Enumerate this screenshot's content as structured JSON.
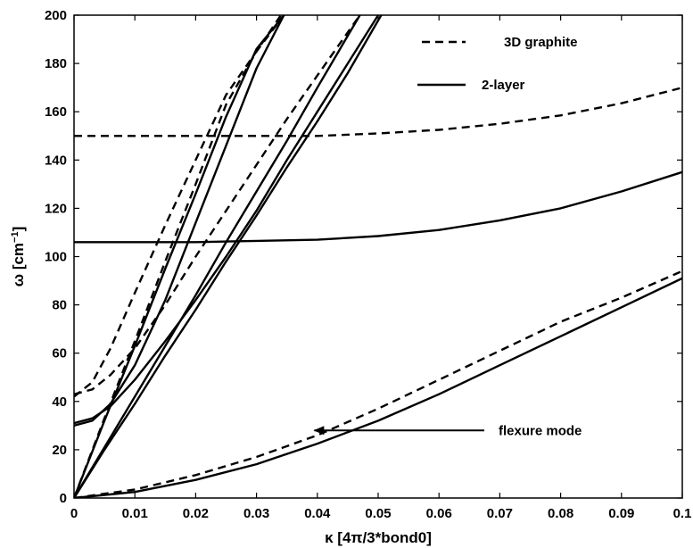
{
  "chart_data": {
    "type": "line",
    "xlabel": "κ [4π/3*bond0]",
    "ylabel_main": "ω [cm",
    "ylabel_sup": "−1",
    "ylabel_close": "]",
    "xlim": [
      0,
      0.1
    ],
    "ylim": [
      0,
      200
    ],
    "xticks": [
      0,
      0.01,
      0.02,
      0.03,
      0.04,
      0.05,
      0.06,
      0.07,
      0.08,
      0.09,
      0.1
    ],
    "xtick_labels": [
      "0",
      "0.01",
      "0.02",
      "0.03",
      "0.04",
      "0.05",
      "0.06",
      "0.07",
      "0.08",
      "0.09",
      "0.1"
    ],
    "yticks": [
      0,
      20,
      40,
      60,
      80,
      100,
      120,
      140,
      160,
      180,
      200
    ],
    "ytick_labels": [
      "0",
      "20",
      "40",
      "60",
      "80",
      "100",
      "120",
      "140",
      "160",
      "180",
      "200"
    ],
    "grid": false,
    "legend_position": "top-right",
    "legend": [
      {
        "label": "3D graphite",
        "style": "dashed"
      },
      {
        "label": "2-layer",
        "style": "solid"
      }
    ],
    "annotation": {
      "text": "flexure mode",
      "arrow_to": [
        0.0395,
        28
      ]
    },
    "series": [
      {
        "group": "3D graphite",
        "style": "dashed",
        "points": [
          [
            0,
            0
          ],
          [
            0.01,
            3.5
          ],
          [
            0.02,
            9.5
          ],
          [
            0.03,
            17
          ],
          [
            0.04,
            26
          ],
          [
            0.05,
            37
          ],
          [
            0.06,
            49
          ],
          [
            0.07,
            61
          ],
          [
            0.08,
            73
          ],
          [
            0.09,
            83
          ],
          [
            0.1,
            94
          ]
        ]
      },
      {
        "group": "3D graphite",
        "style": "dashed",
        "points": [
          [
            0,
            150
          ],
          [
            0.02,
            150
          ],
          [
            0.04,
            150
          ],
          [
            0.05,
            151
          ],
          [
            0.06,
            152.5
          ],
          [
            0.07,
            155
          ],
          [
            0.08,
            158.5
          ],
          [
            0.09,
            163.5
          ],
          [
            0.1,
            170
          ]
        ]
      },
      {
        "group": "3D graphite",
        "style": "dashed",
        "points": [
          [
            0,
            0
          ],
          [
            0.005,
            33
          ],
          [
            0.01,
            65
          ],
          [
            0.015,
            98
          ],
          [
            0.02,
            130
          ],
          [
            0.025,
            163
          ],
          [
            0.03,
            185
          ],
          [
            0.0345,
            200
          ]
        ]
      },
      {
        "group": "3D graphite",
        "style": "dashed",
        "points": [
          [
            0,
            43
          ],
          [
            0.003,
            45
          ],
          [
            0.006,
            51
          ],
          [
            0.01,
            62
          ],
          [
            0.015,
            80
          ],
          [
            0.02,
            100
          ],
          [
            0.025,
            119
          ],
          [
            0.03,
            138
          ],
          [
            0.035,
            157
          ],
          [
            0.04,
            175
          ],
          [
            0.047,
            200
          ]
        ]
      },
      {
        "group": "3D graphite",
        "style": "dashed",
        "points": [
          [
            0,
            42
          ],
          [
            0.003,
            48
          ],
          [
            0.006,
            62
          ],
          [
            0.01,
            85
          ],
          [
            0.015,
            113
          ],
          [
            0.02,
            140
          ],
          [
            0.025,
            167
          ],
          [
            0.03,
            185
          ],
          [
            0.034,
            200
          ]
        ]
      },
      {
        "group": "2-layer",
        "style": "solid",
        "points": [
          [
            0,
            0
          ],
          [
            0.01,
            2.5
          ],
          [
            0.02,
            7.5
          ],
          [
            0.03,
            14
          ],
          [
            0.04,
            22.5
          ],
          [
            0.05,
            32
          ],
          [
            0.06,
            43
          ],
          [
            0.07,
            55
          ],
          [
            0.08,
            67
          ],
          [
            0.09,
            79
          ],
          [
            0.1,
            91
          ]
        ]
      },
      {
        "group": "2-layer",
        "style": "solid",
        "points": [
          [
            0,
            106
          ],
          [
            0.01,
            106
          ],
          [
            0.02,
            106
          ],
          [
            0.03,
            106.5
          ],
          [
            0.04,
            107
          ],
          [
            0.05,
            108.5
          ],
          [
            0.06,
            111
          ],
          [
            0.07,
            115
          ],
          [
            0.08,
            120
          ],
          [
            0.09,
            127
          ],
          [
            0.1,
            135
          ]
        ]
      },
      {
        "group": "2-layer",
        "style": "solid",
        "points": [
          [
            0,
            0
          ],
          [
            0.005,
            32
          ],
          [
            0.01,
            63
          ],
          [
            0.015,
            95
          ],
          [
            0.02,
            126
          ],
          [
            0.025,
            158
          ],
          [
            0.03,
            186
          ],
          [
            0.0345,
            200
          ]
        ]
      },
      {
        "group": "2-layer",
        "style": "solid",
        "points": [
          [
            0,
            0
          ],
          [
            0.005,
            20
          ],
          [
            0.01,
            39
          ],
          [
            0.015,
            59
          ],
          [
            0.02,
            78
          ],
          [
            0.025,
            98
          ],
          [
            0.03,
            117
          ],
          [
            0.035,
            137
          ],
          [
            0.04,
            156
          ],
          [
            0.045,
            176
          ],
          [
            0.0505,
            200
          ]
        ]
      },
      {
        "group": "2-layer",
        "style": "solid",
        "points": [
          [
            0,
            0
          ],
          [
            0.005,
            21
          ],
          [
            0.01,
            42
          ],
          [
            0.015,
            63
          ],
          [
            0.02,
            84
          ],
          [
            0.025,
            106
          ],
          [
            0.03,
            127
          ],
          [
            0.035,
            148
          ],
          [
            0.04,
            170
          ],
          [
            0.047,
            200
          ]
        ]
      },
      {
        "group": "2-layer",
        "style": "solid",
        "points": [
          [
            0,
            30
          ],
          [
            0.003,
            32
          ],
          [
            0.006,
            39
          ],
          [
            0.01,
            55
          ],
          [
            0.015,
            82
          ],
          [
            0.02,
            114
          ],
          [
            0.025,
            146
          ],
          [
            0.03,
            178
          ],
          [
            0.0345,
            200
          ]
        ]
      },
      {
        "group": "2-layer",
        "style": "solid",
        "points": [
          [
            0,
            31
          ],
          [
            0.003,
            33
          ],
          [
            0.006,
            38
          ],
          [
            0.01,
            49
          ],
          [
            0.015,
            65
          ],
          [
            0.02,
            82
          ],
          [
            0.025,
            100
          ],
          [
            0.03,
            119
          ],
          [
            0.035,
            140
          ],
          [
            0.04,
            160
          ],
          [
            0.045,
            180
          ],
          [
            0.05,
            200
          ]
        ]
      }
    ]
  }
}
